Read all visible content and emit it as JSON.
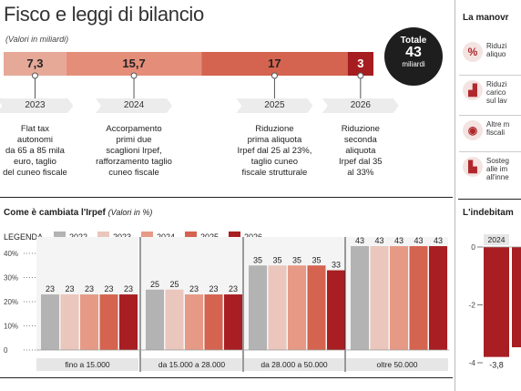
{
  "header": {
    "title": "Fisco e leggi di bilancio",
    "subtitle": "(Valori in miliardi)"
  },
  "total": {
    "label": "Totale",
    "value": "43",
    "unit": "miliardi"
  },
  "colors": {
    "y2022": "#b3b3b3",
    "y2023": "#ebc6bd",
    "y2024": "#e69a86",
    "y2025": "#d4634f",
    "y2026": "#a81e22"
  },
  "chart_data": [
    {
      "type": "bar",
      "title": "Fisco e leggi di bilancio",
      "subtitle": "(Valori in miliardi)",
      "categories": [
        "2023",
        "2024",
        "2025",
        "2026"
      ],
      "values": [
        7.3,
        15.7,
        17,
        3
      ],
      "value_labels": [
        "7,3",
        "15,7",
        "17",
        "3"
      ],
      "descriptions": [
        [
          "Flat tax",
          "autonomi",
          "da 65 a 85 mila",
          "euro, taglio",
          "del cuneo fiscale"
        ],
        [
          "Accorpamento",
          "primi due",
          "scaglioni Irpef,",
          "rafforzamento taglio",
          "cuneo fiscale"
        ],
        [
          "Riduzione",
          "prima aliquota",
          "Irpef dal 25 al 23%,",
          "taglio cuneo",
          "fiscale strutturale"
        ],
        [
          "Riduzione",
          "seconda",
          "aliquota",
          "Irpef dal 35",
          "al 33%"
        ]
      ],
      "colors": [
        "#e6a998",
        "#e48e7a",
        "#d4644f",
        "#a51d20"
      ]
    },
    {
      "type": "bar",
      "title": "Come è cambiata l'Irpef",
      "subtitle": "(Valori in %)",
      "legend_title": "LEGENDA",
      "categories": [
        "fino a 15.000",
        "da 15.000 a 28.000",
        "da 28.000 a 50.000",
        "oltre 50.000"
      ],
      "series": [
        {
          "name": "2022",
          "values": [
            23,
            25,
            35,
            43
          ]
        },
        {
          "name": "2023",
          "values": [
            23,
            25,
            35,
            43
          ]
        },
        {
          "name": "2024",
          "values": [
            23,
            23,
            35,
            43
          ]
        },
        {
          "name": "2025",
          "values": [
            23,
            23,
            35,
            43
          ]
        },
        {
          "name": "2026",
          "values": [
            23,
            23,
            33,
            43
          ]
        }
      ],
      "yticks": [
        "0",
        "10%",
        "20%",
        "30%",
        "40%"
      ],
      "ylim": [
        0,
        43
      ]
    },
    {
      "type": "bar",
      "title": "L'indebitam",
      "categories": [
        "2024"
      ],
      "values": [
        -3.8
      ],
      "value_labels": [
        "-3,8"
      ],
      "yticks": [
        "0",
        "-2",
        "-4"
      ],
      "ylim": [
        -4,
        0
      ]
    }
  ],
  "right_panel": {
    "title": "La manovr",
    "items": [
      {
        "icon": "percent-icon",
        "glyph": "%",
        "lines": [
          "Riduzi",
          "aliquo"
        ]
      },
      {
        "icon": "factory-icon",
        "glyph": "▟",
        "lines": [
          "Riduzi",
          "carico",
          "sul lav"
        ]
      },
      {
        "icon": "money-icon",
        "glyph": "◉",
        "lines": [
          "Altre m",
          "fiscali"
        ]
      },
      {
        "icon": "industry-icon",
        "glyph": "▙",
        "lines": [
          "Sosteg",
          "alle im",
          "all'inne"
        ]
      }
    ]
  }
}
